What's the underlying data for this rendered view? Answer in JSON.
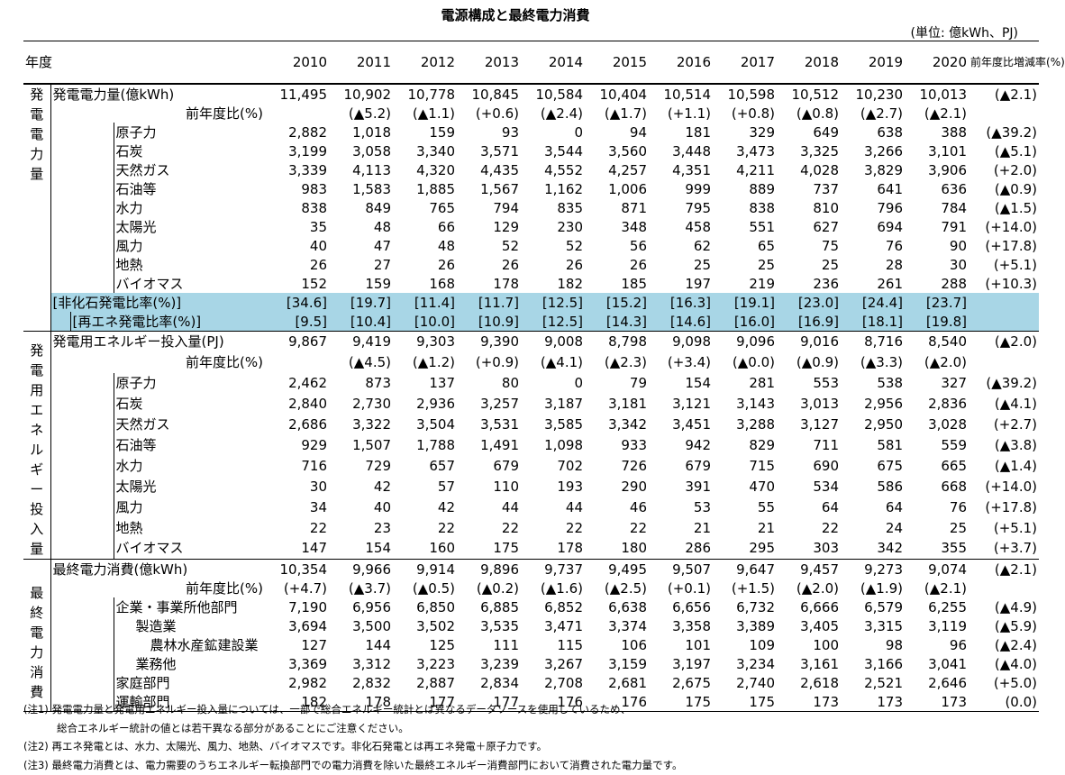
{
  "title": "電源構成と最終電力消費",
  "unit": "(単位: 億kWh、PJ)",
  "header": {
    "year_label": "年度",
    "years": [
      "2010",
      "2011",
      "2012",
      "2013",
      "2014",
      "2015",
      "2016",
      "2017",
      "2018",
      "2019",
      "2020"
    ],
    "change_label": "前年度比増減率(%)"
  },
  "sections": [
    {
      "side_label": "発電電力量",
      "rows": [
        {
          "label": "発電電力量(億kWh)",
          "type": "total",
          "values": [
            "11,495",
            "10,902",
            "10,778",
            "10,845",
            "10,584",
            "10,404",
            "10,514",
            "10,598",
            "10,512",
            "10,230",
            "10,013"
          ],
          "change": "(▲2.1)"
        },
        {
          "label": "前年度比(%)",
          "type": "yoy",
          "values": [
            "",
            "(▲5.2)",
            "(▲1.1)",
            "(+0.6)",
            "(▲2.4)",
            "(▲1.7)",
            "(+1.1)",
            "(+0.8)",
            "(▲0.8)",
            "(▲2.7)",
            "(▲2.1)"
          ],
          "change": ""
        },
        {
          "label": "原子力",
          "type": "item",
          "values": [
            "2,882",
            "1,018",
            "159",
            "93",
            "0",
            "94",
            "181",
            "329",
            "649",
            "638",
            "388"
          ],
          "change": "(▲39.2)"
        },
        {
          "label": "石炭",
          "type": "item",
          "values": [
            "3,199",
            "3,058",
            "3,340",
            "3,571",
            "3,544",
            "3,560",
            "3,448",
            "3,473",
            "3,325",
            "3,266",
            "3,101"
          ],
          "change": "(▲5.1)"
        },
        {
          "label": "天然ガス",
          "type": "item",
          "values": [
            "3,339",
            "4,113",
            "4,320",
            "4,435",
            "4,552",
            "4,257",
            "4,351",
            "4,211",
            "4,028",
            "3,829",
            "3,906"
          ],
          "change": "(+2.0)"
        },
        {
          "label": "石油等",
          "type": "item",
          "values": [
            "983",
            "1,583",
            "1,885",
            "1,567",
            "1,162",
            "1,006",
            "999",
            "889",
            "737",
            "641",
            "636"
          ],
          "change": "(▲0.9)"
        },
        {
          "label": "水力",
          "type": "item",
          "values": [
            "838",
            "849",
            "765",
            "794",
            "835",
            "871",
            "795",
            "838",
            "810",
            "796",
            "784"
          ],
          "change": "(▲1.5)"
        },
        {
          "label": "太陽光",
          "type": "item",
          "values": [
            "35",
            "48",
            "66",
            "129",
            "230",
            "348",
            "458",
            "551",
            "627",
            "694",
            "791"
          ],
          "change": "(+14.0)"
        },
        {
          "label": "風力",
          "type": "item",
          "values": [
            "40",
            "47",
            "48",
            "52",
            "52",
            "56",
            "62",
            "65",
            "75",
            "76",
            "90"
          ],
          "change": "(+17.8)"
        },
        {
          "label": "地熱",
          "type": "item",
          "values": [
            "26",
            "27",
            "26",
            "26",
            "26",
            "26",
            "25",
            "25",
            "25",
            "28",
            "30"
          ],
          "change": "(+5.1)"
        },
        {
          "label": "バイオマス",
          "type": "item",
          "values": [
            "152",
            "159",
            "168",
            "178",
            "182",
            "185",
            "197",
            "219",
            "236",
            "261",
            "288"
          ],
          "change": "(+10.3)"
        },
        {
          "label": "[非化石発電比率(%)]",
          "type": "ratio1",
          "values": [
            "[34.6]",
            "[19.7]",
            "[11.4]",
            "[11.7]",
            "[12.5]",
            "[15.2]",
            "[16.3]",
            "[19.1]",
            "[23.0]",
            "[24.4]",
            "[23.7]"
          ],
          "change": ""
        },
        {
          "label": "[再エネ発電比率(%)]",
          "type": "ratio2",
          "values": [
            "[9.5]",
            "[10.4]",
            "[10.0]",
            "[10.9]",
            "[12.5]",
            "[14.3]",
            "[14.6]",
            "[16.0]",
            "[16.9]",
            "[18.1]",
            "[19.8]"
          ],
          "change": ""
        }
      ]
    },
    {
      "side_label": "発電用エネルギー投入量",
      "rows": [
        {
          "label": "発電用エネルギー投入量(PJ)",
          "type": "total",
          "values": [
            "9,867",
            "9,419",
            "9,303",
            "9,390",
            "9,008",
            "8,798",
            "9,098",
            "9,096",
            "9,016",
            "8,716",
            "8,540"
          ],
          "change": "(▲2.0)"
        },
        {
          "label": "前年度比(%)",
          "type": "yoy",
          "values": [
            "",
            "(▲4.5)",
            "(▲1.2)",
            "(+0.9)",
            "(▲4.1)",
            "(▲2.3)",
            "(+3.4)",
            "(▲0.0)",
            "(▲0.9)",
            "(▲3.3)",
            "(▲2.0)"
          ],
          "change": ""
        },
        {
          "label": "原子力",
          "type": "item",
          "values": [
            "2,462",
            "873",
            "137",
            "80",
            "0",
            "79",
            "154",
            "281",
            "553",
            "538",
            "327"
          ],
          "change": "(▲39.2)"
        },
        {
          "label": "石炭",
          "type": "item",
          "values": [
            "2,840",
            "2,730",
            "2,936",
            "3,257",
            "3,187",
            "3,181",
            "3,121",
            "3,143",
            "3,013",
            "2,956",
            "2,836"
          ],
          "change": "(▲4.1)"
        },
        {
          "label": "天然ガス",
          "type": "item",
          "values": [
            "2,686",
            "3,322",
            "3,504",
            "3,531",
            "3,585",
            "3,342",
            "3,451",
            "3,288",
            "3,127",
            "2,950",
            "3,028"
          ],
          "change": "(+2.7)"
        },
        {
          "label": "石油等",
          "type": "item",
          "values": [
            "929",
            "1,507",
            "1,788",
            "1,491",
            "1,098",
            "933",
            "942",
            "829",
            "711",
            "581",
            "559"
          ],
          "change": "(▲3.8)"
        },
        {
          "label": "水力",
          "type": "item",
          "values": [
            "716",
            "729",
            "657",
            "679",
            "702",
            "726",
            "679",
            "715",
            "690",
            "675",
            "665"
          ],
          "change": "(▲1.4)"
        },
        {
          "label": "太陽光",
          "type": "item",
          "values": [
            "30",
            "42",
            "57",
            "110",
            "193",
            "290",
            "391",
            "470",
            "534",
            "586",
            "668"
          ],
          "change": "(+14.0)"
        },
        {
          "label": "風力",
          "type": "item",
          "values": [
            "34",
            "40",
            "42",
            "44",
            "44",
            "46",
            "53",
            "55",
            "64",
            "64",
            "76"
          ],
          "change": "(+17.8)"
        },
        {
          "label": "地熱",
          "type": "item",
          "values": [
            "22",
            "23",
            "22",
            "22",
            "22",
            "22",
            "21",
            "21",
            "22",
            "24",
            "25"
          ],
          "change": "(+5.1)"
        },
        {
          "label": "バイオマス",
          "type": "item",
          "values": [
            "147",
            "154",
            "160",
            "175",
            "178",
            "180",
            "286",
            "295",
            "303",
            "342",
            "355"
          ],
          "change": "(+3.7)"
        }
      ]
    },
    {
      "side_label": "最終電力消費",
      "rows": [
        {
          "label": "最終電力消費(億kWh)",
          "type": "total",
          "values": [
            "10,354",
            "9,966",
            "9,914",
            "9,896",
            "9,737",
            "9,495",
            "9,507",
            "9,647",
            "9,457",
            "9,273",
            "9,074"
          ],
          "change": "(▲2.1)"
        },
        {
          "label": "前年度比(%)",
          "type": "yoy",
          "values": [
            "(+4.7)",
            "(▲3.7)",
            "(▲0.5)",
            "(▲0.2)",
            "(▲1.6)",
            "(▲2.5)",
            "(+0.1)",
            "(+1.5)",
            "(▲2.0)",
            "(▲1.9)",
            "(▲2.1)"
          ],
          "change": ""
        },
        {
          "label": "企業・事業所他部門",
          "type": "item",
          "values": [
            "7,190",
            "6,956",
            "6,850",
            "6,885",
            "6,852",
            "6,638",
            "6,656",
            "6,732",
            "6,666",
            "6,579",
            "6,255"
          ],
          "change": "(▲4.9)"
        },
        {
          "label": "製造業",
          "type": "sub1",
          "values": [
            "3,694",
            "3,500",
            "3,502",
            "3,535",
            "3,471",
            "3,374",
            "3,358",
            "3,389",
            "3,405",
            "3,315",
            "3,119"
          ],
          "change": "(▲5.9)"
        },
        {
          "label": "農林水産鉱建設業",
          "type": "sub2",
          "values": [
            "127",
            "144",
            "125",
            "111",
            "115",
            "106",
            "101",
            "109",
            "100",
            "98",
            "96"
          ],
          "change": "(▲2.4)"
        },
        {
          "label": "業務他",
          "type": "sub1",
          "values": [
            "3,369",
            "3,312",
            "3,223",
            "3,239",
            "3,267",
            "3,159",
            "3,197",
            "3,234",
            "3,161",
            "3,166",
            "3,041"
          ],
          "change": "(▲4.0)"
        },
        {
          "label": "家庭部門",
          "type": "item",
          "values": [
            "2,982",
            "2,832",
            "2,887",
            "2,834",
            "2,708",
            "2,681",
            "2,675",
            "2,740",
            "2,618",
            "2,521",
            "2,646"
          ],
          "change": "(+5.0)"
        },
        {
          "label": "運輸部門",
          "type": "item",
          "values": [
            "182",
            "178",
            "177",
            "177",
            "176",
            "176",
            "175",
            "175",
            "173",
            "173",
            "173"
          ],
          "change": "(0.0)"
        }
      ]
    }
  ],
  "notes": [
    {
      "text": "(注1) 発電電力量と発電用エネルギー投入量については、一部で総合エネルギー統計とは異なるデータソースを使用しているため、",
      "cont": false
    },
    {
      "text": "総合エネルギー統計の値とは若干異なる部分があることにご注意ください。",
      "cont": true
    },
    {
      "text": "(注2) 再エネ発電とは、水力、太陽光、風力、地熱、バイオマスです。非化石発電とは再エネ発電＋原子力です。",
      "cont": false
    },
    {
      "text": "(注3) 最終電力消費とは、電力需要のうちエネルギー転換部門での電力消費を除いた最終エネルギー消費部門において消費された電力量です。",
      "cont": false
    }
  ],
  "colors": {
    "ratio_fill": "#a8d6e6",
    "border": "#000000"
  }
}
